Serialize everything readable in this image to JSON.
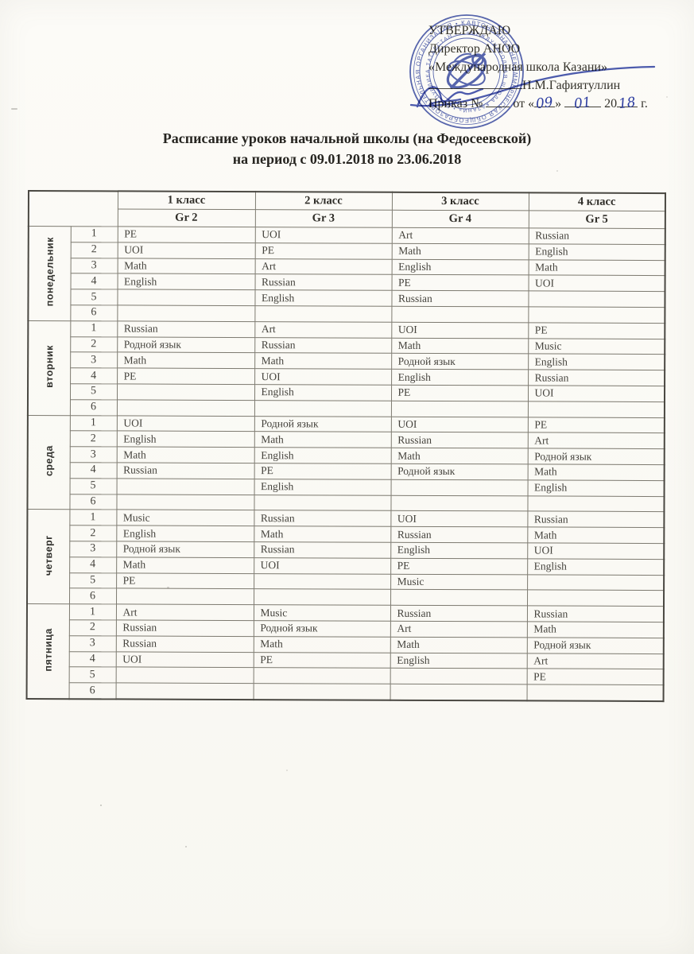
{
  "document": {
    "approval": {
      "approve_label": "УТВЕРЖДАЮ",
      "director_line": "Директор АНОО",
      "school_line": "«Международная школа Казани»",
      "director_name": "Н.М.Гафиятуллин",
      "order_label": "Приказ №",
      "order_from_label": "от «",
      "order_day_handwritten": "09",
      "order_quote_close": "»",
      "order_month_handwritten": "01",
      "order_year_printed": "20",
      "order_year_handwritten": "18",
      "order_suffix": "г."
    },
    "stamp": {
      "outer_ring_text": "АВТОНОМНАЯ НЕКОММЕРЧЕСКАЯ ОБЩЕОБРАЗОВАТЕЛЬНАЯ ОРГАНИЗАЦИЯ • КАЗАНЬ ТАТАРСТАН •",
      "inner_ring_text": "«МЕЖДУНАРОДНАЯ ШКОЛА КАЗАНИ» • РЕСПУБЛИКА ТАТАРСТАН •"
    },
    "title_line1": "Расписание уроков начальной школы (на Федосеевской)",
    "title_line2": "на период с 09.01.2018 по 23.06.2018"
  },
  "table": {
    "class_headers": [
      "1 класс",
      "2 класс",
      "3 класс",
      "4 класс"
    ],
    "group_headers": [
      "Gr 2",
      "Gr 3",
      "Gr 4",
      "Gr 5"
    ],
    "lesson_numbers": [
      "1",
      "2",
      "3",
      "4",
      "5",
      "6"
    ],
    "days": [
      {
        "name": "понедельник",
        "lessons": [
          [
            "PE",
            "UOI",
            "Art",
            "Russian"
          ],
          [
            "UOI",
            "PE",
            "Math",
            "English"
          ],
          [
            "Math",
            "Art",
            "English",
            "Math"
          ],
          [
            "English",
            "Russian",
            "PE",
            "UOI"
          ],
          [
            "",
            "English",
            "Russian",
            ""
          ],
          [
            "",
            "",
            "",
            ""
          ]
        ]
      },
      {
        "name": "вторник",
        "lessons": [
          [
            "Russian",
            "Art",
            "UOI",
            "PE"
          ],
          [
            "Родной язык",
            "Russian",
            "Math",
            "Music"
          ],
          [
            "Math",
            "Math",
            "Родной язык",
            "English"
          ],
          [
            "PE",
            "UOI",
            "English",
            "Russian"
          ],
          [
            "",
            "English",
            "PE",
            "UOI"
          ],
          [
            "",
            "",
            "",
            ""
          ]
        ]
      },
      {
        "name": "среда",
        "lessons": [
          [
            "UOI",
            "Родной язык",
            "UOI",
            "PE"
          ],
          [
            "English",
            "Math",
            "Russian",
            "Art"
          ],
          [
            "Math",
            "English",
            "Math",
            "Родной язык"
          ],
          [
            "Russian",
            "PE",
            "Родной язык",
            "Math"
          ],
          [
            "",
            "English",
            "",
            "English"
          ],
          [
            "",
            "",
            "",
            ""
          ]
        ]
      },
      {
        "name": "четверг",
        "lessons": [
          [
            "Music",
            "Russian",
            "UOI",
            "Russian"
          ],
          [
            "English",
            "Math",
            "Russian",
            "Math"
          ],
          [
            "Родной язык",
            "Russian",
            "English",
            "UOI"
          ],
          [
            "Math",
            "UOI",
            "PE",
            "English"
          ],
          [
            "PE",
            "",
            "Music",
            ""
          ],
          [
            "",
            "",
            "",
            ""
          ]
        ]
      },
      {
        "name": "пятница",
        "lessons": [
          [
            "Art",
            "Music",
            "Russian",
            "Russian"
          ],
          [
            "Russian",
            "Родной язык",
            "Art",
            "Math"
          ],
          [
            "Russian",
            "Math",
            "Math",
            "Родной язык"
          ],
          [
            "UOI",
            "PE",
            "English",
            "Art"
          ],
          [
            "",
            "",
            "",
            "PE"
          ],
          [
            "",
            "",
            "",
            ""
          ]
        ]
      }
    ]
  },
  "colors": {
    "stamp_blue": "#4152a8",
    "ink_blue": "#2c3da5",
    "text_black": "#35332c",
    "paper": "#fbfaf6"
  }
}
